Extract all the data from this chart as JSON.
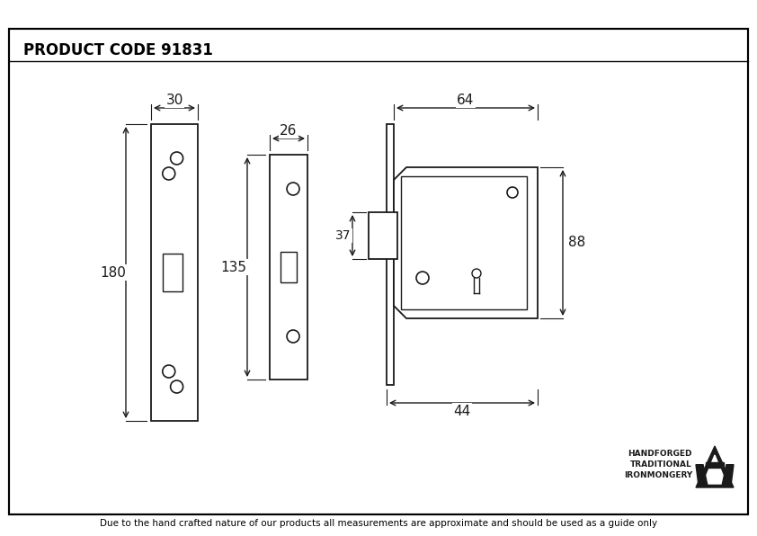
{
  "title": "PRODUCT CODE 91831",
  "footer": "Due to the hand crafted nature of our products all measurements are approximate and should be used as a guide only",
  "brand_line1": "HANDFORGED",
  "brand_line2": "TRADITIONAL",
  "brand_line3": "IRONMONGERY",
  "bg_color": "#ffffff",
  "border_color": "#000000",
  "line_color": "#1a1a1a",
  "dim_30": "30",
  "dim_26": "26",
  "dim_64": "64",
  "dim_180": "180",
  "dim_135": "135",
  "dim_37": "37",
  "dim_88": "88",
  "dim_44": "44",
  "fig_w": 8.42,
  "fig_h": 5.96,
  "dpi": 100
}
